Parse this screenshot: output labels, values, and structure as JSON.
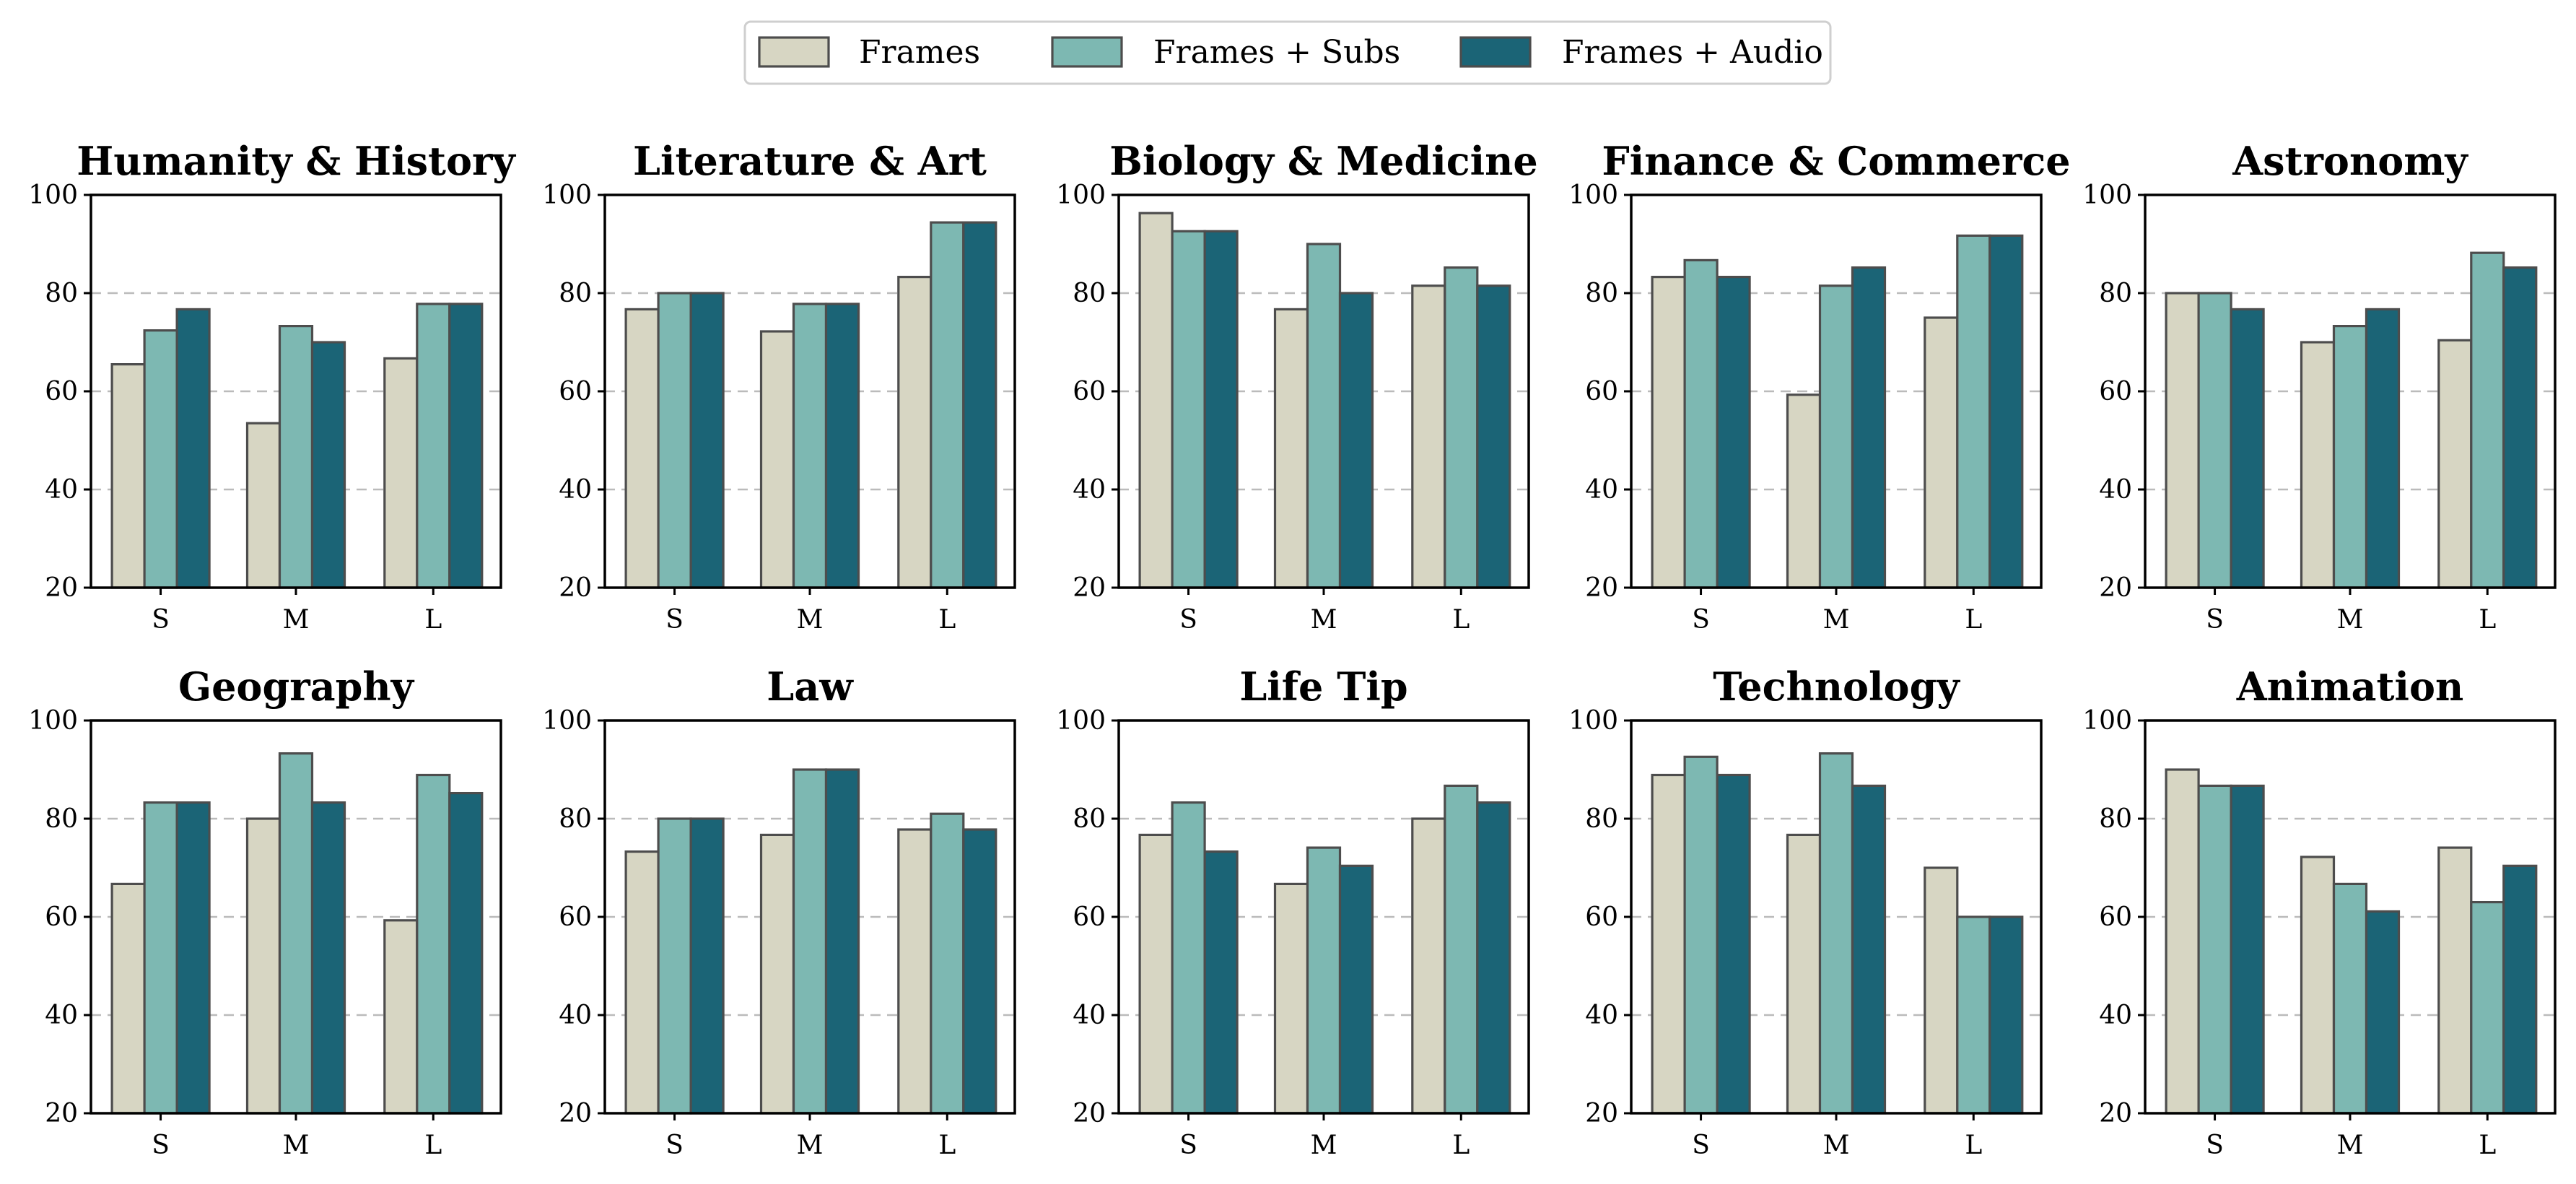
{
  "chart_data": [
    {
      "type": "bar",
      "title": "Humanity & History",
      "categories": [
        "S",
        "M",
        "L"
      ],
      "ylim": [
        20,
        100
      ],
      "yticks": [
        20,
        40,
        60,
        80,
        100
      ],
      "grid": true,
      "series": [
        {
          "name": "Frames",
          "values": [
            65.5,
            53.5,
            66.7
          ]
        },
        {
          "name": "Frames + Subs",
          "values": [
            72.4,
            73.3,
            77.8
          ]
        },
        {
          "name": "Frames + Audio",
          "values": [
            76.7,
            70.0,
            77.8
          ]
        }
      ]
    },
    {
      "type": "bar",
      "title": "Literature & Art",
      "categories": [
        "S",
        "M",
        "L"
      ],
      "ylim": [
        20,
        100
      ],
      "yticks": [
        20,
        40,
        60,
        80,
        100
      ],
      "grid": true,
      "series": [
        {
          "name": "Frames",
          "values": [
            76.7,
            72.2,
            83.3
          ]
        },
        {
          "name": "Frames + Subs",
          "values": [
            80.0,
            77.8,
            94.4
          ]
        },
        {
          "name": "Frames + Audio",
          "values": [
            80.0,
            77.8,
            94.4
          ]
        }
      ]
    },
    {
      "type": "bar",
      "title": "Biology & Medicine",
      "categories": [
        "S",
        "M",
        "L"
      ],
      "ylim": [
        20,
        100
      ],
      "yticks": [
        20,
        40,
        60,
        80,
        100
      ],
      "grid": true,
      "series": [
        {
          "name": "Frames",
          "values": [
            96.3,
            76.7,
            81.5
          ]
        },
        {
          "name": "Frames + Subs",
          "values": [
            92.6,
            90.0,
            85.2
          ]
        },
        {
          "name": "Frames + Audio",
          "values": [
            92.6,
            80.0,
            81.5
          ]
        }
      ]
    },
    {
      "type": "bar",
      "title": "Finance & Commerce",
      "categories": [
        "S",
        "M",
        "L"
      ],
      "ylim": [
        20,
        100
      ],
      "yticks": [
        20,
        40,
        60,
        80,
        100
      ],
      "grid": true,
      "series": [
        {
          "name": "Frames",
          "values": [
            83.3,
            59.3,
            75.0
          ]
        },
        {
          "name": "Frames + Subs",
          "values": [
            86.7,
            81.5,
            91.7
          ]
        },
        {
          "name": "Frames + Audio",
          "values": [
            83.3,
            85.2,
            91.7
          ]
        }
      ]
    },
    {
      "type": "bar",
      "title": "Astronomy",
      "categories": [
        "S",
        "M",
        "L"
      ],
      "ylim": [
        20,
        100
      ],
      "yticks": [
        20,
        40,
        60,
        80,
        100
      ],
      "grid": true,
      "series": [
        {
          "name": "Frames",
          "values": [
            80.0,
            70.0,
            70.4
          ]
        },
        {
          "name": "Frames + Subs",
          "values": [
            80.0,
            73.3,
            88.2
          ]
        },
        {
          "name": "Frames + Audio",
          "values": [
            76.7,
            76.7,
            85.2
          ]
        }
      ]
    },
    {
      "type": "bar",
      "title": "Geography",
      "categories": [
        "S",
        "M",
        "L"
      ],
      "ylim": [
        20,
        100
      ],
      "yticks": [
        20,
        40,
        60,
        80,
        100
      ],
      "grid": true,
      "series": [
        {
          "name": "Frames",
          "values": [
            66.7,
            80.0,
            59.3
          ]
        },
        {
          "name": "Frames + Subs",
          "values": [
            83.3,
            93.3,
            88.9
          ]
        },
        {
          "name": "Frames + Audio",
          "values": [
            83.3,
            83.3,
            85.2
          ]
        }
      ]
    },
    {
      "type": "bar",
      "title": "Law",
      "categories": [
        "S",
        "M",
        "L"
      ],
      "ylim": [
        20,
        100
      ],
      "yticks": [
        20,
        40,
        60,
        80,
        100
      ],
      "grid": true,
      "series": [
        {
          "name": "Frames",
          "values": [
            73.3,
            76.7,
            77.8
          ]
        },
        {
          "name": "Frames + Subs",
          "values": [
            80.0,
            90.0,
            81.0
          ]
        },
        {
          "name": "Frames + Audio",
          "values": [
            80.0,
            90.0,
            77.8
          ]
        }
      ]
    },
    {
      "type": "bar",
      "title": "Life Tip",
      "categories": [
        "S",
        "M",
        "L"
      ],
      "ylim": [
        20,
        100
      ],
      "yticks": [
        20,
        40,
        60,
        80,
        100
      ],
      "grid": true,
      "series": [
        {
          "name": "Frames",
          "values": [
            76.7,
            66.7,
            80.0
          ]
        },
        {
          "name": "Frames + Subs",
          "values": [
            83.3,
            74.1,
            86.7
          ]
        },
        {
          "name": "Frames + Audio",
          "values": [
            73.3,
            70.4,
            83.3
          ]
        }
      ]
    },
    {
      "type": "bar",
      "title": "Technology",
      "categories": [
        "S",
        "M",
        "L"
      ],
      "ylim": [
        20,
        100
      ],
      "yticks": [
        20,
        40,
        60,
        80,
        100
      ],
      "grid": true,
      "series": [
        {
          "name": "Frames",
          "values": [
            88.9,
            76.7,
            70.0
          ]
        },
        {
          "name": "Frames + Subs",
          "values": [
            92.6,
            93.3,
            60.0
          ]
        },
        {
          "name": "Frames + Audio",
          "values": [
            88.9,
            86.7,
            60.0
          ]
        }
      ]
    },
    {
      "type": "bar",
      "title": "Animation",
      "categories": [
        "S",
        "M",
        "L"
      ],
      "ylim": [
        20,
        100
      ],
      "yticks": [
        20,
        40,
        60,
        80,
        100
      ],
      "grid": true,
      "series": [
        {
          "name": "Frames",
          "values": [
            90.0,
            72.2,
            74.1
          ]
        },
        {
          "name": "Frames + Subs",
          "values": [
            86.7,
            66.7,
            63.0
          ]
        },
        {
          "name": "Frames + Audio",
          "values": [
            86.7,
            61.1,
            70.4
          ]
        }
      ]
    }
  ],
  "legend": {
    "placement": "top-center",
    "items": [
      {
        "label": "Frames",
        "color": "#d7d6c3"
      },
      {
        "label": "Frames + Subs",
        "color": "#7db8b2"
      },
      {
        "label": "Frames + Audio",
        "color": "#1b6476"
      }
    ]
  }
}
